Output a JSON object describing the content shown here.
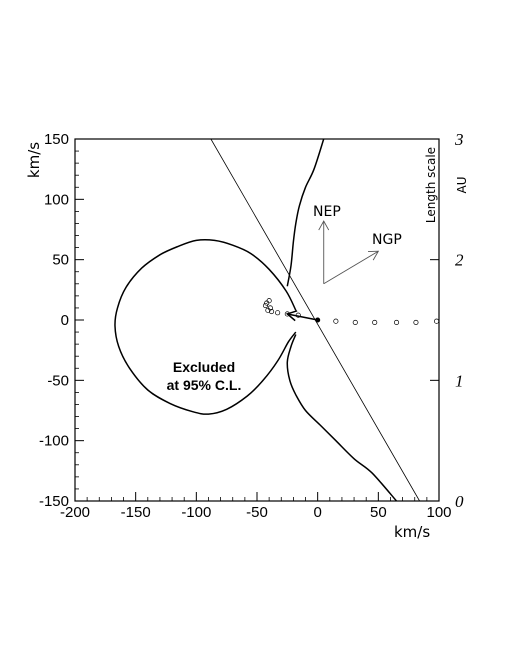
{
  "chart_data": {
    "type": "scatter",
    "title": "",
    "xlabel": "km/s",
    "ylabel": "km/s",
    "xlim": [
      -200,
      100
    ],
    "ylim": [
      -150,
      150
    ],
    "x_ticks": [
      -200,
      -150,
      -100,
      -50,
      0,
      50,
      100
    ],
    "x_tick_labels": [
      "-200",
      "-150",
      "-100",
      "-50",
      "0",
      "50",
      "100"
    ],
    "y_ticks": [
      -150,
      -100,
      -50,
      0,
      50,
      100,
      150
    ],
    "y_tick_labels": [
      "-150",
      "-100",
      "-50",
      "0",
      "50",
      "100",
      "150"
    ],
    "right_axis": {
      "label_line1": "Length scale",
      "label_line2": "AU",
      "range": [
        0,
        3
      ],
      "ticks": [
        0,
        1,
        2,
        3
      ],
      "tick_labels": [
        "0",
        "1",
        "2",
        "3"
      ]
    },
    "annotation": {
      "line1": "Excluded",
      "line2": "at 95% C.L."
    },
    "direction_arrows": {
      "origin": [
        5,
        30
      ],
      "nep": {
        "label": "NEP",
        "tip": [
          5,
          82
        ]
      },
      "ngp": {
        "label": "NGP",
        "tip": [
          50,
          57
        ]
      }
    },
    "excluded_region": [
      [
        -18,
        8
      ],
      [
        -26,
        24
      ],
      [
        -40,
        42
      ],
      [
        -55,
        55
      ],
      [
        -70,
        62
      ],
      [
        -85,
        66
      ],
      [
        -100,
        66
      ],
      [
        -115,
        61
      ],
      [
        -130,
        54
      ],
      [
        -145,
        43
      ],
      [
        -158,
        27
      ],
      [
        -165,
        10
      ],
      [
        -167,
        -5
      ],
      [
        -164,
        -22
      ],
      [
        -155,
        -40
      ],
      [
        -140,
        -58
      ],
      [
        -122,
        -69
      ],
      [
        -103,
        -76
      ],
      [
        -90,
        -78
      ],
      [
        -75,
        -74
      ],
      [
        -58,
        -63
      ],
      [
        -45,
        -50
      ],
      [
        -33,
        -34
      ],
      [
        -24,
        -18
      ],
      [
        -18,
        -10
      ]
    ],
    "upper_boundary": [
      [
        -25,
        28
      ],
      [
        -22,
        45
      ],
      [
        -20,
        65
      ],
      [
        -18,
        80
      ],
      [
        -15,
        95
      ],
      [
        -10,
        110
      ],
      [
        -3,
        125
      ],
      [
        5,
        150
      ]
    ],
    "lower_boundary": [
      [
        -18,
        -12
      ],
      [
        -22,
        -22
      ],
      [
        -25,
        -35
      ],
      [
        -23,
        -50
      ],
      [
        -18,
        -62
      ],
      [
        -10,
        -75
      ],
      [
        2,
        -87
      ],
      [
        15,
        -100
      ],
      [
        30,
        -115
      ],
      [
        45,
        -127
      ],
      [
        65,
        -150
      ]
    ],
    "reference_line": [
      [
        -88,
        150
      ],
      [
        84,
        -150
      ]
    ],
    "velocity_vector": {
      "from": [
        0,
        0
      ],
      "to": [
        -25,
        5
      ]
    },
    "points_x": [
      -42,
      -40,
      -39,
      -41,
      -43,
      -38,
      -33,
      -25,
      -16,
      0,
      15,
      31,
      47,
      65,
      81,
      98
    ],
    "points_y": [
      14,
      16,
      10,
      8,
      12,
      7,
      6,
      5,
      4,
      0,
      -1,
      -2,
      -2,
      -2,
      -2,
      -1
    ]
  }
}
